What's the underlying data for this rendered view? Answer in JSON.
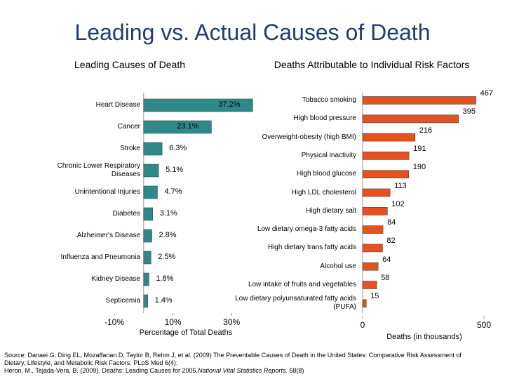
{
  "title": "Leading vs. Actual Causes of Death",
  "source": [
    "Source: Danaei G, Ding EL, Mozaffarian D, Taylor B, Rehm J, et al. (2009) The Preventable Causes of Death in the United States: Comparative Risk Assessment of Dietary, Lifestyle, and Metabolic Risk Factors. PLoS Med 6(4):",
    "Heron, M., Tejada-Vera, B. (2009). Deaths: Leading Causes for 2005.",
    "National Vital Statistics Reports.",
    " 58(8)"
  ],
  "chart_data": [
    {
      "type": "hbar",
      "title": "Leading Causes of Death",
      "categories": [
        "Heart Disease",
        "Cancer",
        "Stroke",
        "Chronic Lower Respiratory Diseases",
        "Unintentional Injuries",
        "Diabetes",
        "Alzheimer's Disease",
        "Influenza and Pneumonia",
        "Kidney Disease",
        "Septicemia"
      ],
      "values": [
        37.2,
        23.1,
        6.3,
        5.1,
        4.7,
        3.1,
        2.8,
        2.5,
        1.8,
        1.4
      ],
      "value_labels": [
        "37.2%",
        "23.1%",
        "6.3%",
        "5.1%",
        "4.7%",
        "3.1%",
        "2.8%",
        "2.5%",
        "1.8%",
        "1.4%"
      ],
      "color": "#2e8a8a",
      "xlabel": "Percentage of Total Deaths",
      "xlim": [
        -10,
        40
      ],
      "xticks": [
        {
          "value": -10,
          "label": "-10%"
        },
        {
          "value": 10,
          "label": "10%"
        },
        {
          "value": 30,
          "label": "30%"
        }
      ]
    },
    {
      "type": "hbar",
      "title": "Deaths Attributable to Individual Risk Factors",
      "categories": [
        "Tobacco smoking",
        "High blood pressure",
        "Overweight-obesity (high BMI)",
        "Physical inactivity",
        "High blood glucose",
        "High LDL cholesterol",
        "High dietary salt",
        "Low dietary omega-3 fatty acids",
        "High dietary trans fatty acids",
        "Alcohol use",
        "Low intake of fruits and vegetables",
        "Low dietary polyunsaturated fatty acids (PUFA)"
      ],
      "values": [
        467,
        395,
        216,
        191,
        190,
        113,
        102,
        84,
        82,
        64,
        58,
        15
      ],
      "color": "#e8501e",
      "xlabel": "Deaths (in thousands)",
      "xlim": [
        0,
        500
      ],
      "xticks": [
        0,
        500
      ]
    }
  ]
}
